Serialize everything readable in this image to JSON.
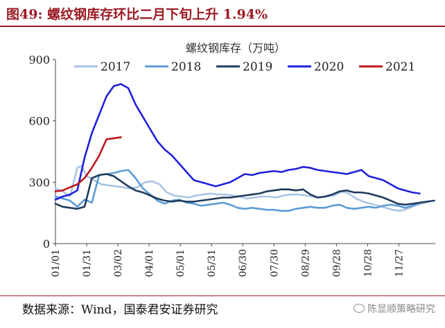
{
  "header": {
    "title": "图49: 螺纹钢库存环比二月下旬上升 1.94%"
  },
  "footer": {
    "source": "数据来源：Wind，国泰君安证券研究",
    "watermark": "陈显顺策略研究",
    "watermark_icon": "wechat-icon"
  },
  "chart_data": {
    "type": "line",
    "title": "螺纹钢库存（万吨）",
    "xlabel": "",
    "ylabel": "",
    "x_tick_labels": [
      "01/01",
      "01/31",
      "03/02",
      "04/01",
      "05/01",
      "05/31",
      "06/30",
      "07/30",
      "08/29",
      "09/28",
      "10/28",
      "11/27"
    ],
    "x_tick_days": [
      0,
      30,
      60,
      90,
      120,
      150,
      180,
      210,
      240,
      270,
      300,
      330
    ],
    "x_range": [
      0,
      365
    ],
    "ylim": [
      0,
      900
    ],
    "yticks": [
      0,
      300,
      600,
      900
    ],
    "grid": false,
    "legend_position": "top",
    "series": [
      {
        "name": "2017",
        "color": "#a9c4e4",
        "x": [
          0,
          7,
          14,
          21,
          25,
          30,
          37,
          44,
          51,
          58,
          65,
          72,
          79,
          86,
          93,
          100,
          107,
          114,
          121,
          128,
          135,
          142,
          149,
          156,
          163,
          170,
          177,
          184,
          191,
          198,
          205,
          212,
          219,
          226,
          233,
          240,
          247,
          254,
          261,
          268,
          275,
          282,
          289,
          296,
          303,
          310,
          317,
          324,
          331,
          338,
          345,
          352,
          359
        ],
        "y": [
          270,
          255,
          230,
          370,
          380,
          330,
          310,
          290,
          285,
          280,
          275,
          270,
          275,
          300,
          305,
          290,
          250,
          235,
          230,
          225,
          235,
          240,
          245,
          240,
          240,
          235,
          230,
          220,
          225,
          230,
          230,
          225,
          235,
          240,
          240,
          235,
          230,
          225,
          230,
          235,
          255,
          245,
          220,
          205,
          195,
          185,
          175,
          165,
          160,
          170,
          185,
          195,
          205
        ]
      },
      {
        "name": "2018",
        "color": "#5b9bd5",
        "x": [
          0,
          7,
          14,
          21,
          28,
          35,
          42,
          49,
          56,
          63,
          70,
          77,
          84,
          91,
          98,
          105,
          112,
          119,
          126,
          133,
          140,
          147,
          154,
          161,
          168,
          175,
          182,
          189,
          196,
          203,
          210,
          217,
          224,
          231,
          238,
          245,
          252,
          259,
          266,
          273,
          280,
          287,
          294,
          301,
          308,
          315,
          322,
          329,
          336,
          343,
          350,
          357
        ],
        "y": [
          230,
          220,
          210,
          180,
          215,
          200,
          335,
          340,
          345,
          355,
          360,
          320,
          270,
          240,
          210,
          195,
          210,
          215,
          200,
          195,
          185,
          190,
          195,
          200,
          190,
          175,
          170,
          175,
          170,
          165,
          165,
          160,
          160,
          170,
          175,
          180,
          175,
          175,
          185,
          190,
          175,
          170,
          175,
          180,
          175,
          185,
          190,
          185,
          175,
          185,
          200,
          205
        ]
      },
      {
        "name": "2019",
        "color": "#1f3a5c",
        "x": [
          0,
          7,
          14,
          21,
          28,
          35,
          42,
          49,
          56,
          63,
          70,
          77,
          84,
          91,
          98,
          105,
          112,
          119,
          126,
          133,
          140,
          147,
          154,
          161,
          168,
          175,
          182,
          189,
          196,
          203,
          210,
          217,
          224,
          231,
          238,
          245,
          252,
          259,
          266,
          273,
          280,
          287,
          294,
          301,
          308,
          315,
          322,
          329,
          336,
          343,
          350,
          357,
          364
        ],
        "y": [
          195,
          180,
          175,
          170,
          180,
          320,
          335,
          340,
          330,
          305,
          280,
          260,
          250,
          235,
          220,
          210,
          205,
          210,
          205,
          205,
          210,
          215,
          220,
          225,
          225,
          230,
          235,
          240,
          245,
          255,
          260,
          265,
          265,
          260,
          265,
          240,
          225,
          230,
          240,
          255,
          260,
          250,
          250,
          245,
          235,
          225,
          210,
          195,
          190,
          195,
          200,
          205,
          210
        ]
      },
      {
        "name": "2020",
        "color": "#1f1fdc",
        "x": [
          0,
          7,
          14,
          21,
          28,
          35,
          42,
          49,
          56,
          63,
          70,
          77,
          84,
          91,
          98,
          105,
          112,
          119,
          126,
          133,
          140,
          147,
          154,
          161,
          168,
          175,
          182,
          189,
          196,
          203,
          210,
          217,
          224,
          231,
          238,
          245,
          252,
          259,
          266,
          273,
          280,
          287,
          294,
          301,
          308,
          315,
          322,
          329,
          336,
          343,
          350
        ],
        "y": [
          215,
          230,
          240,
          260,
          420,
          540,
          630,
          720,
          770,
          780,
          760,
          680,
          620,
          560,
          500,
          460,
          430,
          390,
          350,
          310,
          300,
          290,
          280,
          290,
          300,
          320,
          340,
          335,
          345,
          350,
          355,
          350,
          360,
          365,
          375,
          370,
          360,
          355,
          350,
          345,
          340,
          350,
          360,
          330,
          320,
          310,
          290,
          270,
          260,
          250,
          245
        ]
      },
      {
        "name": "2021",
        "color": "#c0161a",
        "x": [
          0,
          7,
          14,
          21,
          28,
          35,
          42,
          49,
          56,
          63
        ],
        "y": [
          255,
          260,
          275,
          290,
          320,
          370,
          430,
          510,
          515,
          520
        ]
      }
    ]
  }
}
